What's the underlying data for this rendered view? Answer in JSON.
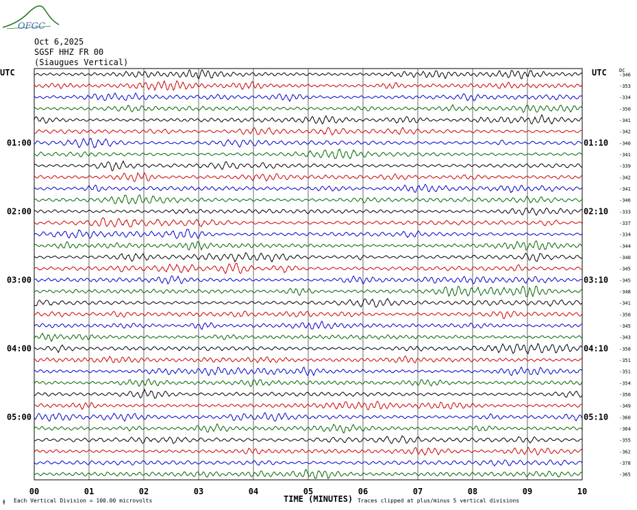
{
  "header": {
    "logo_text": "OFGC",
    "date": "Oct 6,2025",
    "station": "SGSF HHZ FR 00",
    "location": "(Siaugues Vertical)"
  },
  "left_axis_label": "UTC",
  "right_axis_label": "UTC",
  "dc_label": "DC",
  "footer": {
    "division_note": "Each Vertical Division =  100.00 microvolts",
    "clip_note": "Traces clipped at plus/minus 5 vertical divisions",
    "corner_mark": "ɸ"
  },
  "colors": {
    "trace_cycle": [
      "#000000",
      "#cc0000",
      "#0000cc",
      "#006600"
    ],
    "grid": "#000000",
    "logo": "#2a7a2a"
  },
  "chart_data": {
    "type": "line",
    "title": "SGSF HHZ FR 00",
    "xlabel": "TIME (MINUTES)",
    "ylabel": "UTC",
    "xlim": [
      0,
      10
    ],
    "x_ticks": [
      "00",
      "01",
      "02",
      "03",
      "04",
      "05",
      "06",
      "07",
      "08",
      "09",
      "10"
    ],
    "rows": 36,
    "row_interval_minutes": 10,
    "left_time_labels": [
      {
        "row": 6,
        "label": "01:00"
      },
      {
        "row": 12,
        "label": "02:00"
      },
      {
        "row": 18,
        "label": "03:00"
      },
      {
        "row": 24,
        "label": "04:00"
      },
      {
        "row": 30,
        "label": "05:00"
      }
    ],
    "right_time_labels": [
      {
        "row": 6,
        "label": "01:10"
      },
      {
        "row": 12,
        "label": "02:10"
      },
      {
        "row": 18,
        "label": "03:10"
      },
      {
        "row": 24,
        "label": "04:10"
      },
      {
        "row": 30,
        "label": "05:10"
      }
    ],
    "dc_offsets": [
      "-346",
      "-353",
      "-334",
      "-350",
      "-341",
      "-342",
      "-340",
      "-341",
      "-339",
      "-342",
      "-341",
      "-346",
      "-333",
      "-337",
      "-334",
      "-344",
      "-340",
      "-345",
      "-345",
      "-348",
      "-341",
      "-350",
      "-345",
      "-343",
      "-358",
      "-351",
      "-351",
      "-354",
      "-350",
      "-349",
      "-360",
      "-364",
      "-355",
      "-362",
      "-378",
      "-365"
    ],
    "division_microvolts": 100.0,
    "clip_divisions": 5
  }
}
